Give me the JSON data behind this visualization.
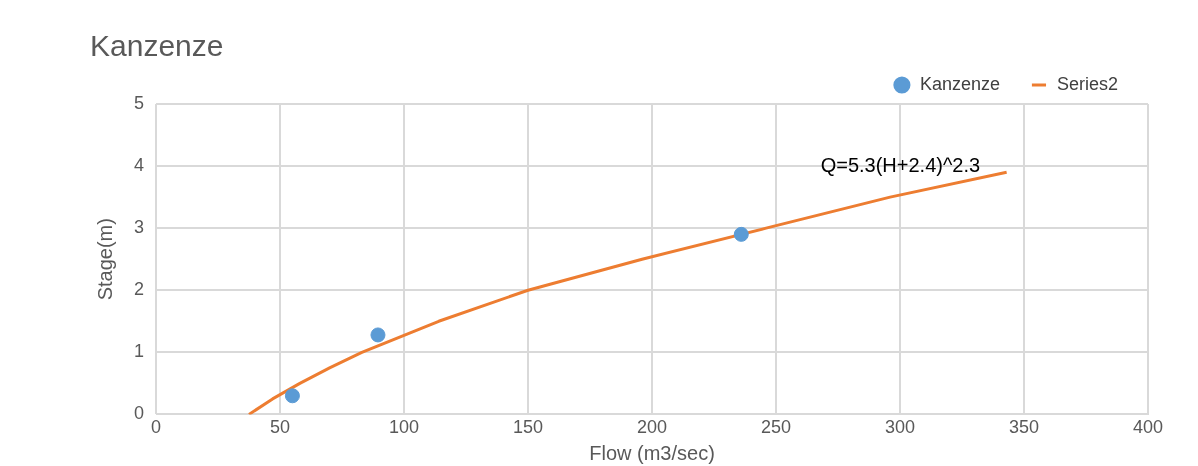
{
  "chart_data": {
    "type": "scatter",
    "title": "Kanzenze",
    "xlabel": "Flow (m3/sec)",
    "ylabel": "Stage(m)",
    "xlim": [
      0,
      400
    ],
    "xticks": [
      0,
      50,
      100,
      150,
      200,
      250,
      300,
      350,
      400
    ],
    "ylim": [
      0,
      5
    ],
    "yticks": [
      0,
      1,
      2,
      3,
      4,
      5
    ],
    "grid": true,
    "legend": "top right",
    "marker": "circle",
    "annotations": [
      "Q=5.3(H+2.4)^2.3"
    ],
    "series": [
      {
        "name": "Kanzenze",
        "type": "scatter",
        "color": "#5b9bd5",
        "x": [
          55,
          89.5,
          236
        ],
        "values": [
          0.3,
          1.28,
          2.9
        ]
      },
      {
        "name": "Series2",
        "type": "line",
        "color": "#ed7d31",
        "marker": "none",
        "x": [
          37.5,
          47,
          58,
          70,
          83,
          114,
          150,
          196,
          246,
          296,
          343
        ],
        "values": [
          0,
          0.25,
          0.5,
          0.75,
          1,
          1.5,
          2,
          2.5,
          3,
          3.5,
          3.9
        ]
      }
    ]
  }
}
